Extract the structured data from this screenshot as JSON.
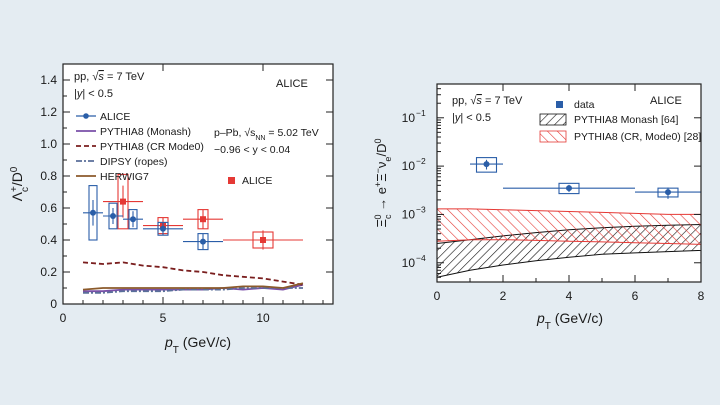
{
  "colors": {
    "background": "#e4ecf2",
    "plot_bg": "#ffffff",
    "blue": "#2a5ea8",
    "red": "#e53935",
    "purple": "#7a4fa8",
    "darkred": "#7a1e1e",
    "brown": "#8b5a2b",
    "slate": "#5a6f9a",
    "black": "#111111"
  },
  "chart_data": [
    {
      "type": "scatter",
      "xlabel_main": "p",
      "xlabel_sub": "T",
      "xlabel_unit": " (GeV/c)",
      "ylabel_main": "Λ",
      "ylabel_sub": "c",
      "ylabel_sup": "+",
      "ylabel_rest": "/D",
      "ylabel_rest_sup": "0",
      "xlim": [
        0,
        13.5
      ],
      "ylim": [
        0,
        1.5
      ],
      "xticks": [
        0,
        5,
        10
      ],
      "yticks": [
        0,
        0.2,
        0.4,
        0.6,
        0.8,
        1.0,
        1.2,
        1.4
      ],
      "ytick_labels": [
        "0",
        "0.2",
        "0.4",
        "0.6",
        "0.8",
        "1.0",
        "1.2",
        "1.4"
      ],
      "xtick_labels": [
        "0",
        "5",
        "10"
      ],
      "annotations": {
        "pp_line1_a": "pp, ",
        "pp_line1_b": "√",
        "pp_line1_c": "s",
        "pp_line1_d": " = 7 TeV",
        "pp_line2_a": "|",
        "pp_line2_b": "y",
        "pp_line2_c": "| < 0.5",
        "experiment": "ALICE",
        "ppb_line1_a": "p–Pb, ",
        "ppb_line1_b": "√s",
        "ppb_line1_sub": "NN",
        "ppb_line1_c": " = 5.02 TeV",
        "ppb_line2": "−0.96 < y < 0.04",
        "ppb_legend": "ALICE"
      },
      "legend": [
        {
          "label": "ALICE",
          "style": "data-blue"
        },
        {
          "label": "PYTHIA8 (Monash)",
          "style": "purple"
        },
        {
          "label": "PYTHIA8 (CR Mode0)",
          "style": "darkred-dash"
        },
        {
          "label": "DIPSY (ropes)",
          "style": "slate-dashdot"
        },
        {
          "label": "HERWIG7",
          "style": "brown"
        }
      ],
      "series": [
        {
          "name": "ALICE",
          "collision": "pp 7 TeV",
          "points": [
            {
              "x": 1.5,
              "y": 0.57,
              "xerr": 0.5,
              "stat": 0.08,
              "syst": 0.17
            },
            {
              "x": 2.5,
              "y": 0.55,
              "xerr": 0.5,
              "stat": 0.05,
              "syst": 0.08
            },
            {
              "x": 3.5,
              "y": 0.53,
              "xerr": 0.5,
              "stat": 0.05,
              "syst": 0.06
            },
            {
              "x": 5.0,
              "y": 0.47,
              "xerr": 1.0,
              "stat": 0.04,
              "syst": 0.04
            },
            {
              "x": 7.0,
              "y": 0.39,
              "xerr": 1.0,
              "stat": 0.05,
              "syst": 0.05
            }
          ]
        },
        {
          "name": "ALICE",
          "collision": "p-Pb 5.02 TeV",
          "points": [
            {
              "x": 3.0,
              "y": 0.64,
              "xerr": 1.0,
              "stat": 0.1,
              "syst": 0.17
            },
            {
              "x": 5.0,
              "y": 0.49,
              "xerr": 1.0,
              "stat": 0.05,
              "syst": 0.05
            },
            {
              "x": 7.0,
              "y": 0.53,
              "xerr": 1.0,
              "stat": 0.06,
              "syst": 0.06
            },
            {
              "x": 10.0,
              "y": 0.4,
              "xerr": 2.0,
              "stat": 0.06,
              "syst": 0.05
            }
          ]
        },
        {
          "name": "PYTHIA8 (Monash)",
          "x": [
            1,
            2,
            3,
            4,
            5,
            6,
            7,
            8,
            9,
            10,
            11,
            12
          ],
          "y": [
            0.08,
            0.08,
            0.09,
            0.09,
            0.09,
            0.09,
            0.09,
            0.1,
            0.09,
            0.1,
            0.09,
            0.12
          ]
        },
        {
          "name": "PYTHIA8 (CR Mode0)",
          "x": [
            1,
            2,
            3,
            4,
            5,
            6,
            7,
            8,
            9,
            10,
            11,
            12
          ],
          "y": [
            0.26,
            0.25,
            0.26,
            0.24,
            0.23,
            0.21,
            0.2,
            0.18,
            0.17,
            0.16,
            0.14,
            0.12
          ]
        },
        {
          "name": "DIPSY (ropes)",
          "x": [
            1,
            2,
            3,
            4,
            5,
            6,
            7,
            8,
            9,
            10,
            11,
            12
          ],
          "y": [
            0.07,
            0.07,
            0.08,
            0.08,
            0.08,
            0.09,
            0.09,
            0.09,
            0.1,
            0.1,
            0.1,
            0.1
          ]
        },
        {
          "name": "HERWIG7",
          "x": [
            1,
            2,
            3,
            4,
            5,
            6,
            7,
            8,
            9,
            10,
            11,
            12
          ],
          "y": [
            0.09,
            0.1,
            0.1,
            0.1,
            0.1,
            0.1,
            0.1,
            0.1,
            0.11,
            0.11,
            0.1,
            0.13
          ]
        }
      ]
    },
    {
      "type": "scatter",
      "xlabel_main": "p",
      "xlabel_sub": "T",
      "xlabel_unit": " (GeV/c)",
      "ylabel_main": "Ξ",
      "ylabel_sub": "c",
      "ylabel_sup": "0",
      "ylabel_arrow": " → e",
      "ylabel_arrow_sup": "+",
      "ylabel_xi": "Ξ",
      "ylabel_xi_sup": "−",
      "ylabel_nu": "ν",
      "ylabel_nu_sub": "e",
      "ylabel_rest": "/D",
      "ylabel_rest_sup": "0",
      "xlim": [
        0,
        8
      ],
      "ylim_log": [
        4e-05,
        0.5
      ],
      "log_y": true,
      "xticks": [
        0,
        2,
        4,
        6,
        8
      ],
      "xtick_labels": [
        "0",
        "2",
        "4",
        "6",
        "8"
      ],
      "yticks": [
        0.0001,
        0.001,
        0.01,
        0.1
      ],
      "ytick_base": "10",
      "ytick_exps": [
        "−4",
        "−3",
        "−2",
        "−1"
      ],
      "annotations": {
        "pp_line1_a": "pp, ",
        "pp_line1_b": "√",
        "pp_line1_c": "s",
        "pp_line1_d": " = 7 TeV",
        "pp_line2_a": "|",
        "pp_line2_b": "y",
        "pp_line2_c": "| < 0.5",
        "experiment": "ALICE"
      },
      "legend": [
        {
          "label": "data",
          "style": "data-blue"
        },
        {
          "label": "PYTHIA8 Monash [64]",
          "style": "black-hatch"
        },
        {
          "label": "PYTHIA8 (CR, Mode0) [28]",
          "style": "red-hatch"
        }
      ],
      "series": [
        {
          "name": "data",
          "points": [
            {
              "x": 1.5,
              "y": 0.011,
              "xerr": 0.5,
              "stat_lo": 0.0085,
              "stat_hi": 0.0135,
              "syst_lo": 0.0075,
              "syst_hi": 0.015
            },
            {
              "x": 4.0,
              "y": 0.0035,
              "xerr": 2.0,
              "stat_lo": 0.0029,
              "stat_hi": 0.0041,
              "syst_lo": 0.0027,
              "syst_hi": 0.0044
            },
            {
              "x": 7.0,
              "y": 0.0029,
              "xerr": 1.0,
              "stat_lo": 0.0021,
              "stat_hi": 0.0036,
              "syst_lo": 0.0023,
              "syst_hi": 0.0035
            }
          ]
        },
        {
          "name": "PYTHIA8 Monash [64]",
          "x": [
            0,
            1,
            2,
            3,
            4,
            5,
            6,
            7,
            8
          ],
          "lo": [
            5e-05,
            7e-05,
            9e-05,
            0.00011,
            0.00013,
            0.00015,
            0.00016,
            0.00017,
            0.00018
          ],
          "hi": [
            0.00025,
            0.0003,
            0.00036,
            0.00042,
            0.00048,
            0.00053,
            0.00057,
            0.0006,
            0.00062
          ]
        },
        {
          "name": "PYTHIA8 (CR, Mode0) [28]",
          "x": [
            0,
            1,
            2,
            3,
            4,
            5,
            6,
            7,
            8
          ],
          "lo": [
            0.00028,
            0.0003,
            0.0003,
            0.00029,
            0.00028,
            0.00027,
            0.00026,
            0.00025,
            0.00024
          ],
          "hi": [
            0.0013,
            0.0013,
            0.00125,
            0.0012,
            0.00115,
            0.0011,
            0.00105,
            0.001,
            0.001
          ]
        }
      ]
    }
  ]
}
